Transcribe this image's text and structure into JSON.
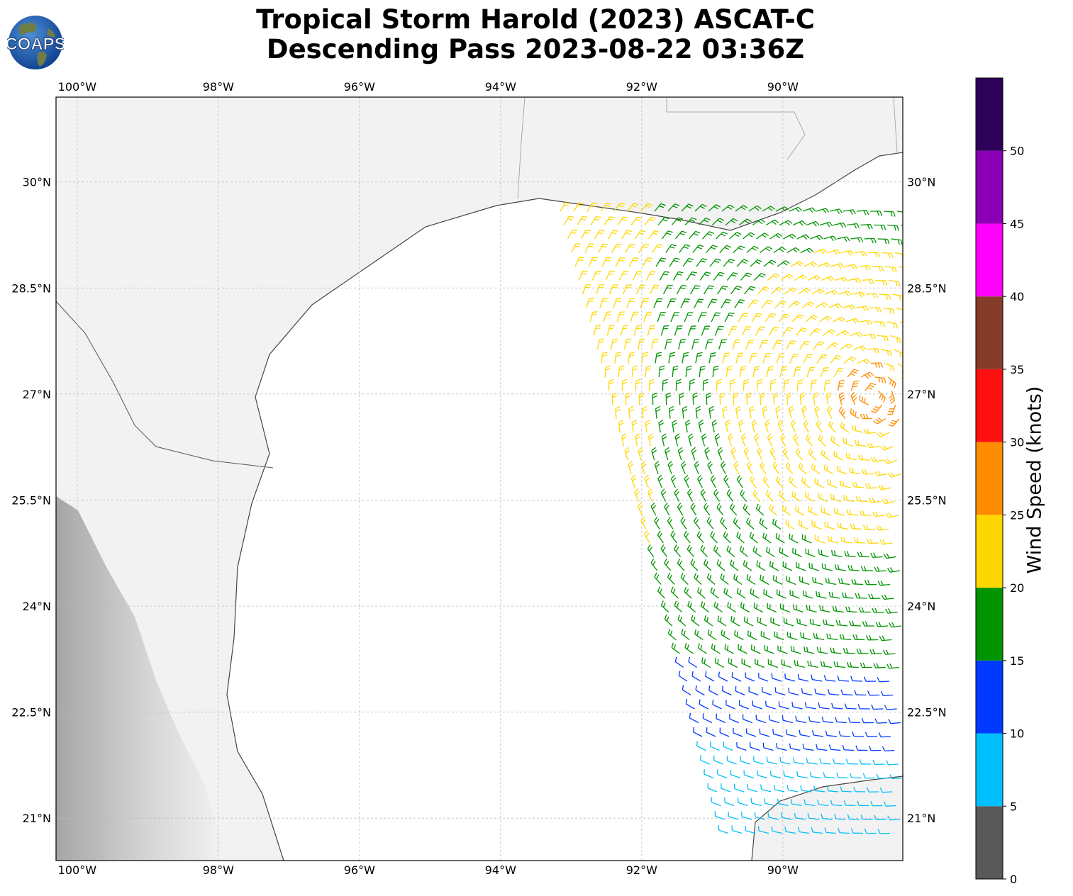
{
  "title": {
    "line1": "Tropical Storm Harold (2023) ASCAT-C",
    "line2": "Descending Pass 2023-08-22 03:36Z"
  },
  "logo": {
    "text": "COAPS",
    "icon": "globe-icon"
  },
  "map": {
    "lon_range": [
      -100.3,
      -88.3
    ],
    "lat_range": [
      20.4,
      31.2
    ],
    "lon_ticks": [
      {
        "value": -100,
        "label": "100°W"
      },
      {
        "value": -98,
        "label": "98°W"
      },
      {
        "value": -96,
        "label": "96°W"
      },
      {
        "value": -94,
        "label": "94°W"
      },
      {
        "value": -92,
        "label": "92°W"
      },
      {
        "value": -90,
        "label": "90°W"
      }
    ],
    "lat_ticks": [
      {
        "value": 30,
        "label": "30°N"
      },
      {
        "value": 28.5,
        "label": "28.5°N"
      },
      {
        "value": 27,
        "label": "27°N"
      },
      {
        "value": 25.5,
        "label": "25.5°N"
      },
      {
        "value": 24,
        "label": "24°N"
      },
      {
        "value": 22.5,
        "label": "22.5°N"
      },
      {
        "value": 21,
        "label": "21°N"
      }
    ],
    "gridlines": true,
    "background": "grayscale terrain over land",
    "symbol": "wind barbs"
  },
  "colorbar": {
    "label": "Wind Speed (knots)",
    "orientation": "vertical",
    "bins": [
      {
        "from": 0,
        "to": 5,
        "color": "#595959"
      },
      {
        "from": 5,
        "to": 10,
        "color": "#00bfff"
      },
      {
        "from": 10,
        "to": 15,
        "color": "#0039ff"
      },
      {
        "from": 15,
        "to": 20,
        "color": "#009400"
      },
      {
        "from": 20,
        "to": 25,
        "color": "#ffd700"
      },
      {
        "from": 25,
        "to": 30,
        "color": "#ff8c00"
      },
      {
        "from": 30,
        "to": 35,
        "color": "#ff1010"
      },
      {
        "from": 35,
        "to": 40,
        "color": "#873c2a"
      },
      {
        "from": 40,
        "to": 45,
        "color": "#ff00ff"
      },
      {
        "from": 45,
        "to": 50,
        "color": "#8b00b4"
      },
      {
        "from": 50,
        "to": 55,
        "color": "#2d005a"
      }
    ],
    "tick_labels": [
      "0",
      "5",
      "10",
      "15",
      "20",
      "25",
      "30",
      "35",
      "40",
      "45",
      "50"
    ]
  }
}
